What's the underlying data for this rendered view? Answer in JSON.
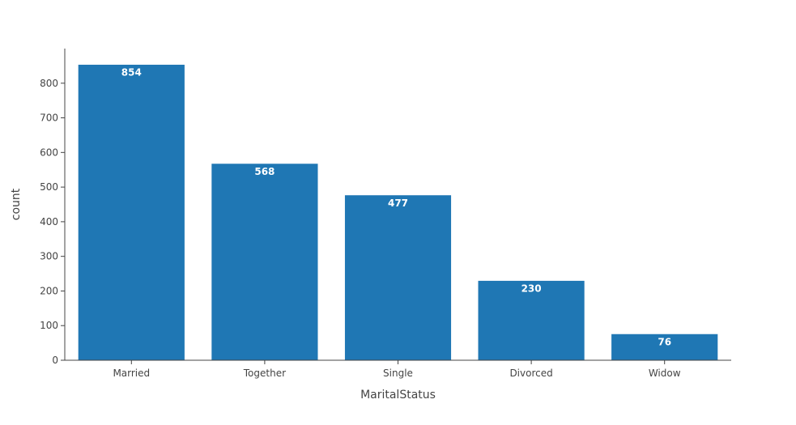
{
  "chart_data": {
    "type": "bar",
    "categories": [
      "Married",
      "Together",
      "Single",
      "Divorced",
      "Widow"
    ],
    "values": [
      854,
      568,
      477,
      230,
      76
    ],
    "data_labels": [
      "854",
      "568",
      "477",
      "230",
      "76"
    ],
    "xlabel": "MaritalStatus",
    "ylabel": "count",
    "ylim": [
      0,
      900
    ],
    "yticks": [
      0,
      100,
      200,
      300,
      400,
      500,
      600,
      700,
      800
    ],
    "ytick_labels": [
      "0",
      "100",
      "200",
      "300",
      "400",
      "500",
      "600",
      "700",
      "800"
    ],
    "grid": false,
    "legend": "none",
    "bar_color": "#1f77b4",
    "bar_edge_color": "#ffffff",
    "axis_color": "#444444",
    "label_color": "#ffffff"
  }
}
